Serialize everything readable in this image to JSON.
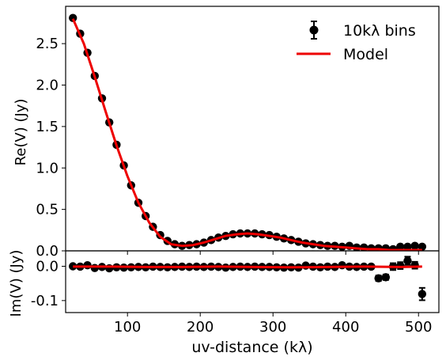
{
  "chart_data": [
    {
      "panel": "top",
      "type": "scatter",
      "title": "",
      "xlabel": "",
      "ylabel": "Re(V) (Jy)",
      "xlim": [
        15,
        528
      ],
      "ylim": [
        0.0,
        2.95
      ],
      "xticks": [
        100,
        200,
        300,
        400,
        500
      ],
      "yticks": [
        0.0,
        0.5,
        1.0,
        1.5,
        2.0,
        2.5
      ],
      "ytick_labels": [
        "0.0",
        "0.5",
        "1.0",
        "1.5",
        "2.0",
        "2.5"
      ],
      "grid": false,
      "legend": {
        "placement": "top-right",
        "entries": [
          {
            "label": "10kλ bins",
            "marker": "point-with-errorbar",
            "color": "#000000"
          },
          {
            "label": "Model",
            "marker": "line",
            "color": "#ee0000"
          }
        ]
      },
      "series": [
        {
          "name": "10kλ bins",
          "kind": "points",
          "color": "#000000",
          "x": [
            25,
            35,
            45,
            55,
            65,
            75,
            85,
            95,
            105,
            115,
            125,
            135,
            145,
            155,
            165,
            175,
            185,
            195,
            205,
            215,
            225,
            235,
            245,
            255,
            265,
            275,
            285,
            295,
            305,
            315,
            325,
            335,
            345,
            355,
            365,
            375,
            385,
            395,
            405,
            415,
            425,
            435,
            445,
            455,
            465,
            475,
            485,
            495,
            505
          ],
          "y": [
            2.81,
            2.62,
            2.39,
            2.11,
            1.84,
            1.55,
            1.28,
            1.03,
            0.79,
            0.58,
            0.42,
            0.29,
            0.19,
            0.12,
            0.08,
            0.06,
            0.07,
            0.08,
            0.1,
            0.13,
            0.16,
            0.18,
            0.2,
            0.21,
            0.21,
            0.21,
            0.2,
            0.19,
            0.17,
            0.15,
            0.13,
            0.11,
            0.09,
            0.08,
            0.07,
            0.06,
            0.06,
            0.05,
            0.06,
            0.04,
            0.04,
            0.03,
            0.03,
            0.03,
            0.02,
            0.05,
            0.05,
            0.06,
            0.05
          ]
        },
        {
          "name": "Model",
          "kind": "line",
          "color": "#ee0000",
          "x": [
            25,
            40,
            55,
            70,
            85,
            100,
            115,
            130,
            145,
            160,
            175,
            190,
            205,
            220,
            235,
            250,
            265,
            280,
            295,
            310,
            325,
            340,
            355,
            370,
            385,
            400,
            415,
            430,
            445,
            460,
            475,
            490,
            505
          ],
          "y": [
            2.8,
            2.5,
            2.1,
            1.68,
            1.27,
            0.9,
            0.58,
            0.34,
            0.17,
            0.08,
            0.06,
            0.07,
            0.1,
            0.14,
            0.18,
            0.2,
            0.21,
            0.2,
            0.18,
            0.16,
            0.13,
            0.1,
            0.08,
            0.06,
            0.05,
            0.04,
            0.03,
            0.02,
            0.02,
            0.01,
            0.01,
            0.01,
            0.01
          ]
        }
      ]
    },
    {
      "panel": "bottom",
      "type": "scatter",
      "title": "",
      "xlabel": "uv-distance (kλ)",
      "ylabel": "Im(V) (Jy)",
      "xlim": [
        15,
        528
      ],
      "ylim": [
        -0.135,
        0.045
      ],
      "xticks": [
        100,
        200,
        300,
        400,
        500
      ],
      "xtick_labels": [
        "100",
        "200",
        "300",
        "400",
        "500"
      ],
      "yticks": [
        0.0,
        -0.1
      ],
      "ytick_labels": [
        "0.0",
        "-0.1"
      ],
      "grid": false,
      "series": [
        {
          "name": "10kλ bins",
          "kind": "points",
          "color": "#000000",
          "x": [
            25,
            35,
            45,
            55,
            65,
            75,
            85,
            95,
            105,
            115,
            125,
            135,
            145,
            155,
            165,
            175,
            185,
            195,
            205,
            215,
            225,
            235,
            245,
            255,
            265,
            275,
            285,
            295,
            305,
            315,
            325,
            335,
            345,
            355,
            365,
            375,
            385,
            395,
            405,
            415,
            425,
            435,
            445,
            455,
            465,
            475,
            485,
            495,
            505
          ],
          "y": [
            0.0,
            -0.001,
            0.003,
            -0.005,
            -0.002,
            -0.006,
            -0.003,
            -0.004,
            -0.003,
            -0.002,
            -0.003,
            -0.001,
            -0.002,
            -0.003,
            -0.002,
            -0.001,
            -0.002,
            -0.001,
            -0.002,
            -0.001,
            -0.002,
            -0.004,
            -0.002,
            -0.001,
            -0.002,
            -0.001,
            -0.002,
            -0.002,
            -0.003,
            -0.004,
            -0.003,
            -0.004,
            0.002,
            -0.001,
            -0.003,
            -0.001,
            -0.002,
            0.003,
            -0.001,
            -0.002,
            -0.001,
            -0.001,
            -0.035,
            -0.032,
            -0.001,
            0.002,
            0.016,
            0.003,
            -0.081
          ],
          "err": [
            0.002,
            0.002,
            0.002,
            0.002,
            0.002,
            0.002,
            0.002,
            0.002,
            0.002,
            0.002,
            0.002,
            0.002,
            0.002,
            0.002,
            0.002,
            0.002,
            0.002,
            0.002,
            0.002,
            0.002,
            0.002,
            0.002,
            0.002,
            0.002,
            0.002,
            0.002,
            0.002,
            0.002,
            0.002,
            0.002,
            0.002,
            0.002,
            0.002,
            0.002,
            0.002,
            0.002,
            0.002,
            0.002,
            0.003,
            0.003,
            0.004,
            0.004,
            0.008,
            0.008,
            0.01,
            0.01,
            0.012,
            0.01,
            0.018
          ]
        },
        {
          "name": "Model",
          "kind": "line",
          "color": "#ee0000",
          "x": [
            25,
            75,
            125,
            175,
            225,
            275,
            325,
            375,
            425,
            475,
            505
          ],
          "y": [
            -0.001,
            -0.001,
            -0.002,
            -0.002,
            -0.001,
            -0.002,
            -0.003,
            -0.002,
            -0.001,
            -0.002,
            -0.001
          ]
        }
      ]
    }
  ]
}
